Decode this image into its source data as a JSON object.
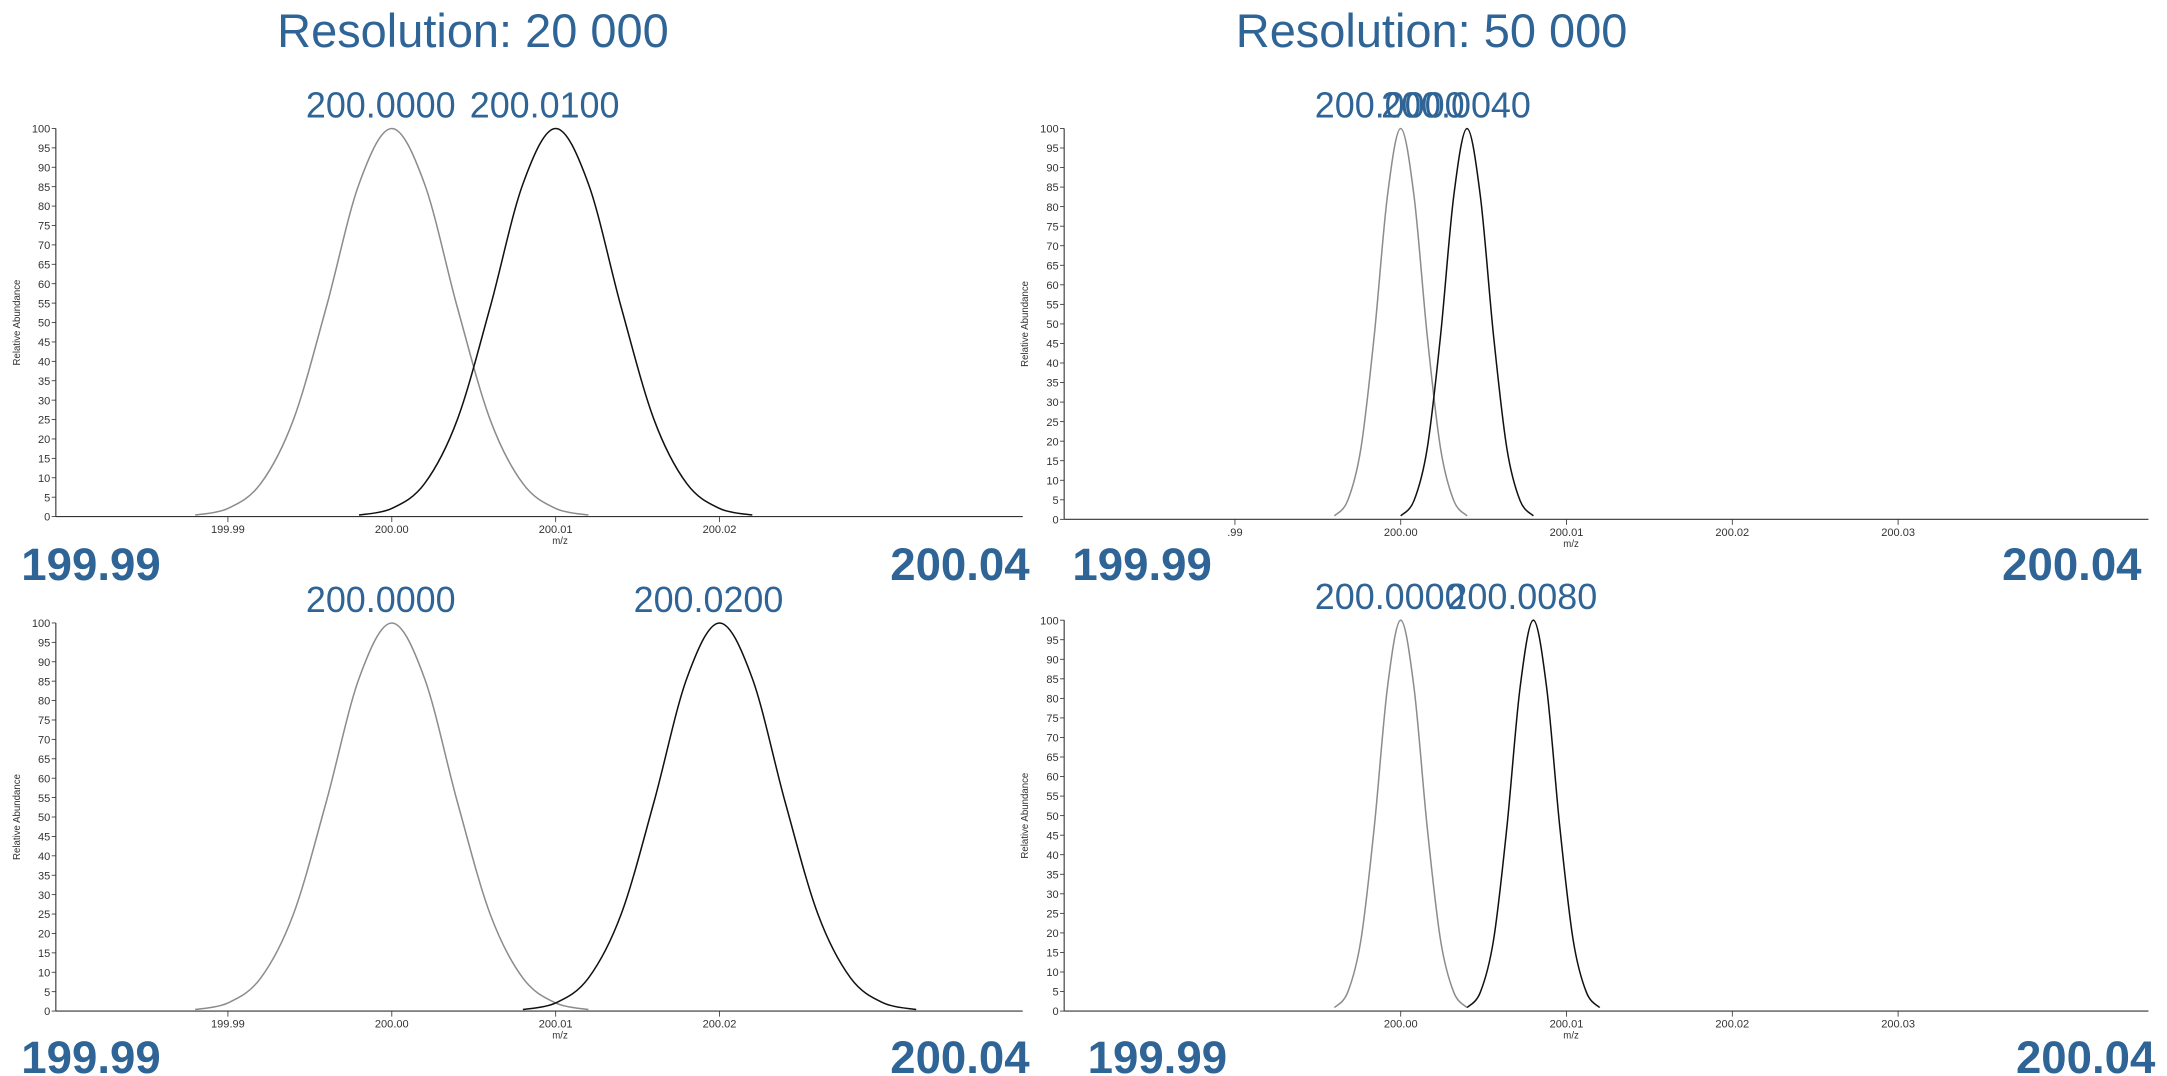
{
  "chart_data": [
    {
      "type": "line",
      "title": "Resolution: 20 000",
      "xlabel": "m/z",
      "ylabel": "Relative Abundance",
      "xlim": [
        199.9795,
        200.0385
      ],
      "xticks": [
        199.99,
        {
          "value": 200,
          "label": "200.00"
        },
        200.01,
        200.02
      ],
      "ylim": [
        0,
        100
      ],
      "yticks": [
        0,
        5,
        10,
        15,
        20,
        25,
        30,
        35,
        40,
        45,
        50,
        55,
        60,
        65,
        70,
        75,
        80,
        85,
        90,
        95,
        100
      ],
      "annotations": [
        "199.99",
        "200.04"
      ],
      "series": [
        {
          "name": "200.0000",
          "color": "#8c8c8c",
          "x": [
            199.988,
            199.99,
            199.992,
            199.994,
            199.996,
            199.998,
            200,
            200.002,
            200.004,
            200.006,
            200.008,
            200.01,
            200.012
          ],
          "values": [
            0.4,
            2.1,
            8.5,
            25,
            53.9,
            85.7,
            100,
            85.7,
            53.9,
            25,
            8.5,
            2.1,
            0.4
          ]
        },
        {
          "name": "200.0100",
          "color": "#111111",
          "x": [
            199.998,
            200,
            200.002,
            200.004,
            200.006,
            200.008,
            200.01,
            200.012,
            200.014,
            200.016,
            200.018,
            200.02,
            200.022
          ],
          "values": [
            0.4,
            2.1,
            8.5,
            25,
            53.9,
            85.7,
            100,
            85.7,
            53.9,
            25,
            8.5,
            2.1,
            0.4
          ]
        }
      ]
    },
    {
      "type": "line",
      "title": "Resolution: 50 000",
      "xlabel": "m/z",
      "ylabel": "Relative Abundance",
      "xlim": [
        199.9797,
        200.0451
      ],
      "xticks": [
        {
          "value": 199.99,
          "label": ".99"
        },
        {
          "value": 200,
          "label": "200.00"
        },
        200.01,
        200.02,
        200.03
      ],
      "ylim": [
        0,
        100
      ],
      "yticks": [
        0,
        5,
        10,
        15,
        20,
        25,
        30,
        35,
        40,
        45,
        50,
        55,
        60,
        65,
        70,
        75,
        80,
        85,
        90,
        95,
        100
      ],
      "annotations": [
        "199.99",
        "200.04"
      ],
      "series": [
        {
          "name": "200.0000",
          "color": "#8c8c8c",
          "x": [
            199.996,
            199.9968,
            199.9976,
            199.9984,
            199.9992,
            200,
            200.0008,
            200.0016,
            200.0024,
            200.0032,
            200.004
          ],
          "values": [
            0.9,
            4.8,
            18.2,
            46.9,
            82.8,
            100,
            82.8,
            46.9,
            18.2,
            4.8,
            0.9
          ]
        },
        {
          "name": "200.0040",
          "color": "#111111",
          "x": [
            200,
            200.0008,
            200.0016,
            200.0024,
            200.0032,
            200.004,
            200.0048,
            200.0056,
            200.0064,
            200.0072,
            200.008
          ],
          "values": [
            0.9,
            4.8,
            18.2,
            46.9,
            82.8,
            100,
            82.8,
            46.9,
            18.2,
            4.8,
            0.9
          ]
        }
      ]
    },
    {
      "type": "line",
      "xlabel": "m/z",
      "ylabel": "Relative Abundance",
      "xlim": [
        199.9795,
        200.0385
      ],
      "xticks": [
        199.99,
        {
          "value": 200,
          "label": "200.00"
        },
        200.01,
        200.02
      ],
      "ylim": [
        0,
        100
      ],
      "yticks": [
        0,
        5,
        10,
        15,
        20,
        25,
        30,
        35,
        40,
        45,
        50,
        55,
        60,
        65,
        70,
        75,
        80,
        85,
        90,
        95,
        100
      ],
      "annotations": [
        "199.99",
        "200.04"
      ],
      "series": [
        {
          "name": "200.0000",
          "color": "#8c8c8c",
          "x": [
            199.988,
            199.99,
            199.992,
            199.994,
            199.996,
            199.998,
            200,
            200.002,
            200.004,
            200.006,
            200.008,
            200.01,
            200.012
          ],
          "values": [
            0.4,
            2.1,
            8.5,
            25,
            53.9,
            85.7,
            100,
            85.7,
            53.9,
            25,
            8.5,
            2.1,
            0.4
          ]
        },
        {
          "name": "200.0200",
          "color": "#111111",
          "x": [
            200.008,
            200.01,
            200.012,
            200.014,
            200.016,
            200.018,
            200.02,
            200.022,
            200.024,
            200.026,
            200.028,
            200.03,
            200.032
          ],
          "values": [
            0.4,
            2.1,
            8.5,
            25,
            53.9,
            85.7,
            100,
            85.7,
            53.9,
            25,
            8.5,
            2.1,
            0.4
          ]
        }
      ]
    },
    {
      "type": "line",
      "xlabel": "m/z",
      "ylabel": "Relative Abundance",
      "xlim": [
        199.9797,
        200.0451
      ],
      "xticks": [
        {
          "value": 200,
          "label": "200.00"
        },
        200.01,
        200.02,
        200.03
      ],
      "ylim": [
        0,
        100
      ],
      "yticks": [
        0,
        5,
        10,
        15,
        20,
        25,
        30,
        35,
        40,
        45,
        50,
        55,
        60,
        65,
        70,
        75,
        80,
        85,
        90,
        95,
        100
      ],
      "annotations": [
        "199.99",
        "200.04"
      ],
      "series": [
        {
          "name": "200.0000",
          "color": "#8c8c8c",
          "x": [
            199.996,
            199.9968,
            199.9976,
            199.9984,
            199.9992,
            200,
            200.0008,
            200.0016,
            200.0024,
            200.0032,
            200.004
          ],
          "values": [
            0.9,
            4.8,
            18.2,
            46.9,
            82.8,
            100,
            82.8,
            46.9,
            18.2,
            4.8,
            0.9
          ]
        },
        {
          "name": "200.0080",
          "color": "#111111",
          "x": [
            200.004,
            200.0048,
            200.0056,
            200.0064,
            200.0072,
            200.008,
            200.0088,
            200.0096,
            200.0104,
            200.0112,
            200.012
          ],
          "values": [
            0.9,
            4.8,
            18.2,
            46.9,
            82.8,
            100,
            82.8,
            46.9,
            18.2,
            4.8,
            0.9
          ]
        }
      ]
    }
  ]
}
